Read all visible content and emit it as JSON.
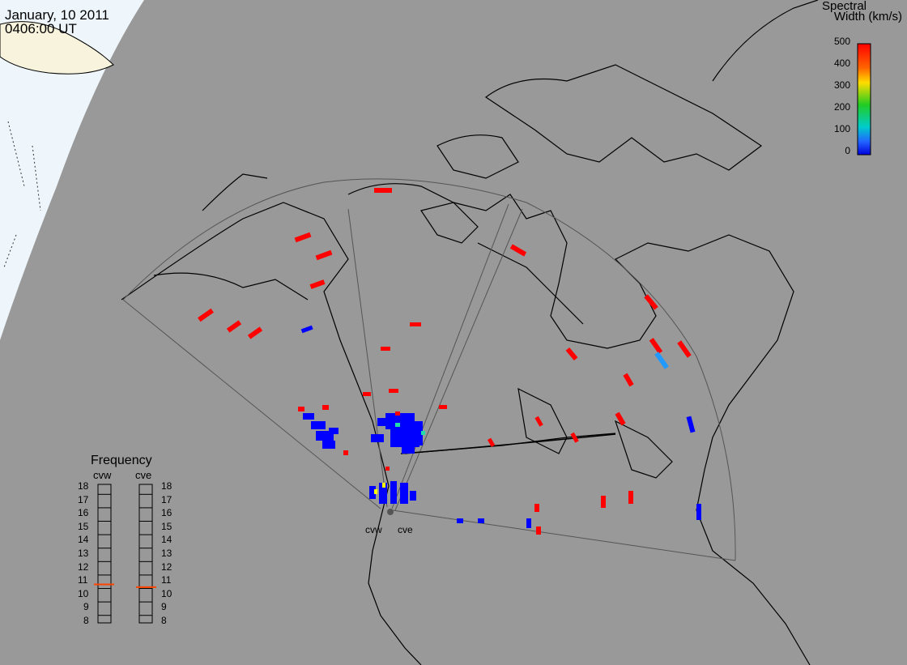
{
  "header": {
    "date": "January, 10 2011",
    "time": "0406:00 UT"
  },
  "legend": {
    "title_line1": "Spectral",
    "title_line2": "Width (km/s)",
    "ticks": [
      "500",
      "400",
      "300",
      "200",
      "100",
      "0"
    ]
  },
  "frequency": {
    "title": "Frequency",
    "radars": [
      "cvw",
      "cve"
    ],
    "levels": [
      "18",
      "17",
      "16",
      "15",
      "14",
      "13",
      "12",
      "11",
      "10",
      "9",
      "8"
    ],
    "cvw_value": 10.8,
    "cve_value": 10.6
  },
  "radars": {
    "cvw": "cvw",
    "cve": "cve"
  },
  "colors": {
    "background": "#999999",
    "low": "#0000ff",
    "high": "#ff0000",
    "day": "#eef6fb",
    "border": "#000000"
  }
}
